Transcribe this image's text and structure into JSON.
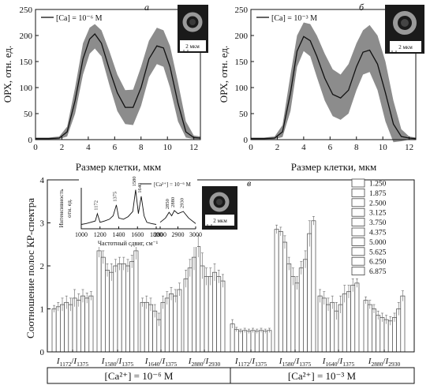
{
  "chart_data": [
    {
      "panel": "а",
      "type": "area",
      "legend": "[Ca] = 10⁻⁶ М",
      "xlabel": "Размер клетки, мкм",
      "ylabel": "ОРХ, отн. ед.",
      "xlim": [
        0,
        12.5
      ],
      "ylim": [
        0,
        250
      ],
      "xticks": [
        0,
        2,
        4,
        6,
        8,
        10,
        12
      ],
      "yticks": [
        0,
        50,
        100,
        150,
        200,
        250
      ],
      "inset_scale": "2 мкм",
      "x": [
        0,
        1,
        1.8,
        2.4,
        3,
        3.6,
        4.1,
        4.5,
        5,
        5.6,
        6.2,
        6.8,
        7.4,
        8,
        8.6,
        9.2,
        9.7,
        10.2,
        10.8,
        11.4,
        12,
        12.5
      ],
      "mean": [
        2,
        2,
        3,
        15,
        75,
        155,
        193,
        203,
        185,
        135,
        90,
        62,
        62,
        100,
        155,
        180,
        176,
        140,
        70,
        15,
        4,
        3
      ],
      "upper": [
        4,
        4,
        6,
        25,
        100,
        185,
        215,
        222,
        210,
        170,
        125,
        95,
        96,
        140,
        190,
        215,
        210,
        180,
        110,
        35,
        8,
        6
      ],
      "lower": [
        0,
        0,
        1,
        6,
        50,
        125,
        165,
        175,
        160,
        105,
        55,
        30,
        28,
        65,
        120,
        145,
        140,
        100,
        35,
        4,
        1,
        1
      ]
    },
    {
      "panel": "б",
      "type": "area",
      "legend": "[Ca] = 10⁻³ М",
      "xlabel": "Размер клетки, мкм",
      "ylabel": "ОРХ, отн. ед.",
      "xlim": [
        0,
        12.5
      ],
      "ylim": [
        0,
        250
      ],
      "xticks": [
        0,
        2,
        4,
        6,
        8,
        10,
        12
      ],
      "yticks": [
        0,
        50,
        100,
        150,
        200,
        250
      ],
      "inset_scale": "2 мкм",
      "x": [
        0,
        1,
        1.8,
        2.4,
        3,
        3.5,
        4,
        4.5,
        5,
        5.6,
        6.2,
        6.8,
        7.4,
        8,
        8.5,
        9,
        9.6,
        10.2,
        10.8,
        11.4,
        12,
        12.5
      ],
      "mean": [
        2,
        2,
        3,
        15,
        90,
        170,
        198,
        190,
        160,
        118,
        87,
        80,
        95,
        140,
        168,
        172,
        145,
        90,
        30,
        6,
        3,
        2
      ],
      "upper": [
        4,
        4,
        6,
        28,
        125,
        200,
        225,
        222,
        200,
        165,
        135,
        125,
        145,
        185,
        210,
        220,
        200,
        150,
        75,
        20,
        6,
        4
      ],
      "lower": [
        0,
        0,
        1,
        5,
        55,
        140,
        170,
        160,
        120,
        75,
        45,
        38,
        50,
        95,
        125,
        130,
        95,
        35,
        -5,
        -3,
        0,
        0
      ]
    },
    {
      "panel": "в",
      "type": "bar",
      "ylabel": "Соотношение полос КР-спектра",
      "ylim": [
        0,
        4
      ],
      "yticks": [
        0,
        1,
        2,
        3,
        4
      ],
      "legend_title": "",
      "legend": [
        "1.250",
        "1.875",
        "2.500",
        "3.125",
        "3.750",
        "4.375",
        "5.000",
        "5.625",
        "6.250",
        "6.875"
      ],
      "group_labels": [
        "I1172/I1375",
        "I1580/I1375",
        "I1640/I1375",
        "I2880/I2930",
        "I1172/I1375",
        "I1580/I1375",
        "I1640/I1375",
        "I2880/I2930"
      ],
      "group_label_parts": [
        {
          "a": "I",
          "as": "1172",
          "b": "I",
          "bs": "1375"
        },
        {
          "a": "I",
          "as": "1580",
          "b": "I",
          "bs": "1375"
        },
        {
          "a": "I",
          "as": "1640",
          "b": "I",
          "bs": "1375"
        },
        {
          "a": "I",
          "as": "2880",
          "b": "I",
          "bs": "2930"
        },
        {
          "a": "I",
          "as": "1172",
          "b": "I",
          "bs": "1375"
        },
        {
          "a": "I",
          "as": "1580",
          "b": "I",
          "bs": "1375"
        },
        {
          "a": "I",
          "as": "1640",
          "b": "I",
          "bs": "1375"
        },
        {
          "a": "I",
          "as": "2880",
          "b": "I",
          "bs": "2930"
        }
      ],
      "conditions": [
        "[Ca²⁺] = 10⁻⁶ М",
        "[Ca²⁺] = 10⁻³ М"
      ],
      "values": [
        [
          1.0,
          1.05,
          1.1,
          1.15,
          1.1,
          1.25,
          1.2,
          1.3,
          1.25,
          1.3
        ],
        [
          2.35,
          2.2,
          1.9,
          1.85,
          2.0,
          2.05,
          2.05,
          2.0,
          2.1,
          2.35
        ],
        [
          1.15,
          1.15,
          1.1,
          0.95,
          0.75,
          1.15,
          1.25,
          1.35,
          1.3,
          1.45
        ],
        [
          1.7,
          1.95,
          2.2,
          2.45,
          2.0,
          1.75,
          1.75,
          1.85,
          1.75,
          1.65
        ],
        [
          0.65,
          0.52,
          0.48,
          0.5,
          0.48,
          0.5,
          0.48,
          0.5,
          0.48,
          0.5
        ],
        [
          2.85,
          2.8,
          2.55,
          2.05,
          1.75,
          1.6,
          1.95,
          2.15,
          2.75,
          3.05
        ],
        [
          1.3,
          1.25,
          1.1,
          1.15,
          0.95,
          1.1,
          1.35,
          1.4,
          1.55,
          1.6
        ],
        [
          1.2,
          1.1,
          1.0,
          0.85,
          0.8,
          0.75,
          0.72,
          0.8,
          1.0,
          1.3
        ]
      ],
      "errors": [
        [
          0.08,
          0.1,
          0.15,
          0.15,
          0.15,
          0.2,
          0.15,
          0.15,
          0.12,
          0.1
        ],
        [
          0.15,
          0.15,
          0.15,
          0.2,
          0.15,
          0.15,
          0.15,
          0.15,
          0.15,
          0.2
        ],
        [
          0.1,
          0.15,
          0.15,
          0.15,
          0.15,
          0.15,
          0.15,
          0.15,
          0.15,
          0.15
        ],
        [
          0.2,
          0.2,
          0.3,
          0.25,
          0.3,
          0.2,
          0.2,
          0.2,
          0.15,
          0.15
        ],
        [
          0.1,
          0.05,
          0.05,
          0.05,
          0.05,
          0.05,
          0.05,
          0.05,
          0.05,
          0.05
        ],
        [
          0.1,
          0.1,
          0.15,
          0.15,
          0.2,
          0.15,
          0.15,
          0.2,
          0.3,
          0.1
        ],
        [
          0.15,
          0.15,
          0.15,
          0.15,
          0.2,
          0.2,
          0.2,
          0.15,
          0.15,
          0.1
        ],
        [
          0.08,
          0.1,
          0.1,
          0.1,
          0.1,
          0.1,
          0.1,
          0.1,
          0.15,
          0.12
        ]
      ],
      "spectrum_inset": {
        "legend": "[Ca²⁺] = 10⁻⁶ М",
        "ylabel": "Интенсивность отн. ед.",
        "xlabel": "Частотный сдвиг, см⁻¹",
        "xticks": [
          1000,
          1200,
          1400,
          1600,
          1800,
          2800,
          2900,
          3000
        ],
        "peak_labels": [
          "1172",
          "1375",
          "1580",
          "1640",
          "2850",
          "2880",
          "2930"
        ],
        "segment1_x": [
          1000,
          1050,
          1100,
          1150,
          1172,
          1200,
          1250,
          1300,
          1340,
          1375,
          1400,
          1450,
          1500,
          1550,
          1580,
          1610,
          1640,
          1670,
          1700,
          1750,
          1800
        ],
        "segment1_y": [
          0.1,
          0.12,
          0.15,
          0.18,
          0.35,
          0.15,
          0.18,
          0.22,
          0.3,
          0.55,
          0.25,
          0.22,
          0.28,
          0.4,
          0.9,
          0.35,
          0.75,
          0.3,
          0.15,
          0.12,
          0.1
        ],
        "segment2_x": [
          2800,
          2830,
          2850,
          2865,
          2880,
          2900,
          2930,
          2960,
          3000
        ],
        "segment2_y": [
          0.15,
          0.25,
          0.38,
          0.3,
          0.42,
          0.35,
          0.4,
          0.25,
          0.12
        ]
      }
    }
  ],
  "labels": {
    "panel_a": "а",
    "panel_b": "б",
    "panel_c": "в",
    "legend_a": "[Ca] = 10⁻⁶ М",
    "legend_b": "[Ca] = 10⁻³ М",
    "scale": "2 мкм",
    "xlabel_top": "Размер клетки, мкм",
    "ylabel_top": "ОРХ, отн. ед.",
    "ylabel_bottom": "Соотношение полос КР-спектра",
    "cond1": "[Ca²⁺] = 10⁻⁶ М",
    "cond2": "[Ca²⁺] = 10⁻³ М",
    "inset_ylabel_1": "Интенсивность",
    "inset_ylabel_2": "отн. ед.",
    "inset_xlabel": "Частотный сдвиг, см⁻¹",
    "inset_legend": "[Ca²⁺] = 10⁻⁶ М"
  }
}
